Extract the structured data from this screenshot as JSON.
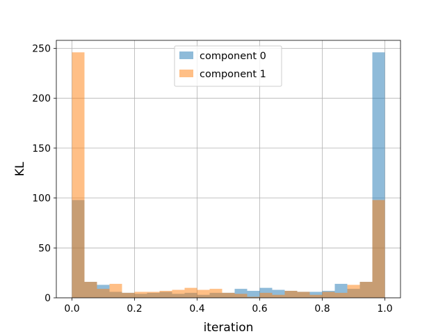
{
  "chart_data": {
    "type": "bar",
    "title": "",
    "xlabel": "iteration",
    "ylabel": "KL",
    "xlim": [
      -0.05,
      1.05
    ],
    "ylim": [
      0,
      258
    ],
    "xticks": [
      0.0,
      0.2,
      0.4,
      0.6,
      0.8,
      1.0
    ],
    "xtick_labels": [
      "0.0",
      "0.2",
      "0.4",
      "0.6",
      "0.8",
      "1.0"
    ],
    "yticks": [
      0,
      50,
      100,
      150,
      200,
      250
    ],
    "ytick_labels": [
      "0",
      "50",
      "100",
      "150",
      "200",
      "250"
    ],
    "grid": true,
    "legend_position": "top-center",
    "bin_width": 0.04,
    "bin_edges": [
      0.0,
      0.04,
      0.08,
      0.12,
      0.16,
      0.2,
      0.24,
      0.28,
      0.32,
      0.36,
      0.4,
      0.44,
      0.48,
      0.52,
      0.56,
      0.6,
      0.64,
      0.68,
      0.72,
      0.76,
      0.8,
      0.84,
      0.88,
      0.92,
      0.96,
      1.0
    ],
    "series": [
      {
        "name": "component 0",
        "color": "#1f77b4",
        "opacity": 0.5,
        "values": [
          98,
          16,
          13,
          6,
          5,
          4,
          5,
          6,
          4,
          5,
          3,
          5,
          5,
          9,
          7,
          10,
          8,
          7,
          6,
          6,
          7,
          14,
          9,
          16,
          246
        ]
      },
      {
        "name": "component 1",
        "color": "#ff7f0e",
        "opacity": 0.5,
        "values": [
          246,
          16,
          9,
          14,
          5,
          6,
          6,
          7,
          8,
          10,
          8,
          9,
          5,
          4,
          1,
          5,
          3,
          7,
          6,
          3,
          6,
          5,
          13,
          16,
          98
        ]
      }
    ]
  }
}
